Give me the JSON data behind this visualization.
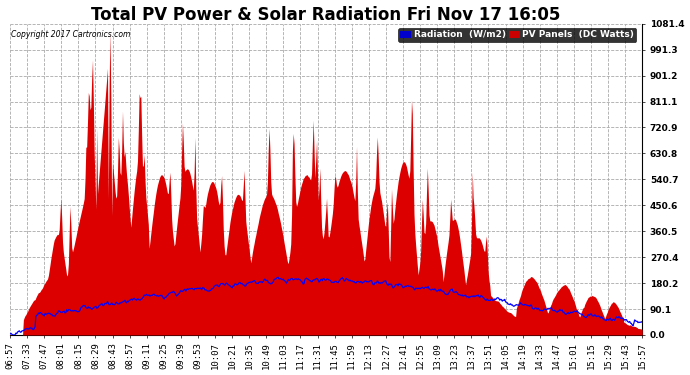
{
  "title": "Total PV Power & Solar Radiation Fri Nov 17 16:05",
  "copyright": "Copyright 2017 Cartronics.com",
  "legend_radiation_label": "Radiation  (W/m2)",
  "legend_pv_label": "PV Panels  (DC Watts)",
  "legend_radiation_bg": "#0000cc",
  "legend_pv_bg": "#cc0000",
  "bg_color": "#ffffff",
  "plot_bg_color": "#ffffff",
  "pv_color": "#dd0000",
  "radiation_color": "#0000ff",
  "grid_color": "#aaaaaa",
  "title_fontsize": 12,
  "tick_label_fontsize": 6.5,
  "x_tick_labels": [
    "06:57",
    "07:33",
    "07:47",
    "08:01",
    "08:15",
    "08:29",
    "08:43",
    "08:57",
    "09:11",
    "09:25",
    "09:39",
    "09:53",
    "10:07",
    "10:21",
    "10:35",
    "10:49",
    "11:03",
    "11:17",
    "11:31",
    "11:45",
    "11:59",
    "12:13",
    "12:27",
    "12:41",
    "12:55",
    "13:09",
    "13:23",
    "13:37",
    "13:51",
    "14:05",
    "14:19",
    "14:33",
    "14:47",
    "15:01",
    "15:15",
    "15:29",
    "15:43",
    "15:57"
  ],
  "yticks": [
    0.0,
    90.1,
    180.2,
    270.4,
    360.5,
    450.6,
    540.7,
    630.8,
    720.9,
    811.1,
    901.2,
    991.3,
    1081.4
  ],
  "ylim": [
    0.0,
    1081.4
  ],
  "num_points": 760
}
